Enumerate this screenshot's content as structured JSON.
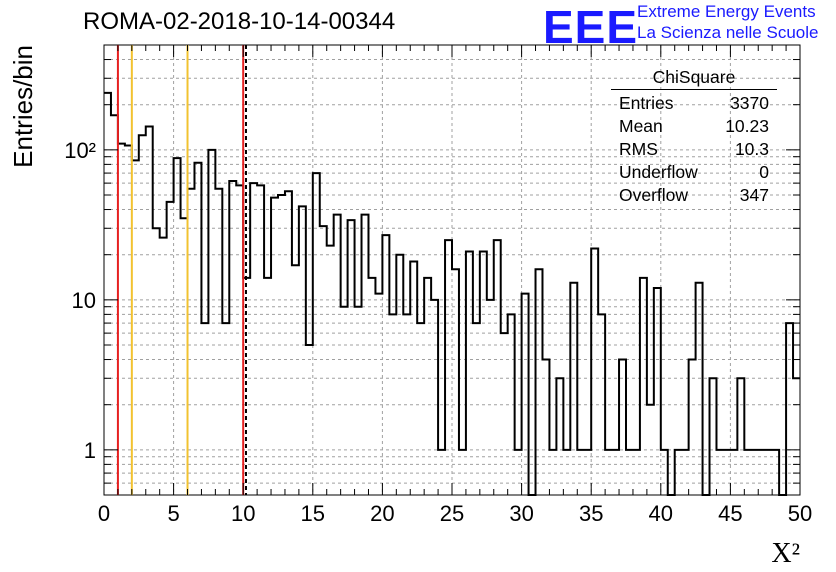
{
  "title": "ROMA-02-2018-10-14-00344",
  "logo": {
    "mark": "EEE",
    "line1": "Extreme Energy Events",
    "line2": "La Scienza nelle Scuole",
    "color": "#1a1aff"
  },
  "stats": {
    "name": "ChiSquare",
    "rows": [
      {
        "label": "Entries",
        "value": "3370"
      },
      {
        "label": "Mean",
        "value": "10.23"
      },
      {
        "label": "RMS",
        "value": "10.3"
      },
      {
        "label": "Underflow",
        "value": "0"
      },
      {
        "label": "Overflow",
        "value": "347"
      }
    ]
  },
  "chart_data": {
    "type": "bar",
    "histogram": true,
    "xlabel": "X²",
    "ylabel": "Entries/bin",
    "xlim": [
      0,
      50
    ],
    "ylim": [
      0.5,
      500
    ],
    "yscale": "log",
    "grid": true,
    "x_ticks": [
      "0",
      "5",
      "10",
      "15",
      "20",
      "25",
      "30",
      "35",
      "40",
      "45",
      "50"
    ],
    "y_ticks": [
      "1",
      "10",
      "10²"
    ],
    "bin_width": 0.5,
    "bin_starts": [
      0,
      0.5,
      1,
      1.5,
      2,
      2.5,
      3,
      3.5,
      4,
      4.5,
      5,
      5.5,
      6,
      6.5,
      7,
      7.5,
      8,
      8.5,
      9,
      9.5,
      10,
      10.5,
      11,
      11.5,
      12,
      12.5,
      13,
      13.5,
      14,
      14.5,
      15,
      15.5,
      16,
      16.5,
      17,
      17.5,
      18,
      18.5,
      19,
      19.5,
      20,
      20.5,
      21,
      21.5,
      22,
      22.5,
      23,
      23.5,
      24,
      24.5,
      25,
      25.5,
      26,
      26.5,
      27,
      27.5,
      28,
      28.5,
      29,
      29.5,
      30,
      30.5,
      31,
      31.5,
      32,
      32.5,
      33,
      33.5,
      34,
      34.5,
      35,
      35.5,
      36,
      36.5,
      37,
      37.5,
      38,
      38.5,
      39,
      39.5,
      40,
      40.5,
      41,
      41.5,
      42,
      42.5,
      43,
      43.5,
      44,
      44.5,
      45,
      45.5,
      46,
      46.5,
      47,
      47.5,
      48,
      48.5,
      49,
      49.5
    ],
    "values": [
      240,
      170,
      110,
      107,
      85,
      125,
      143,
      30,
      26,
      45,
      88,
      35,
      55,
      82,
      7,
      100,
      55,
      7,
      62,
      58,
      14,
      60,
      58,
      14,
      48,
      50,
      53,
      17,
      42,
      5,
      70,
      31,
      23,
      37,
      9,
      34,
      9,
      37,
      14,
      11,
      27,
      8,
      20,
      8,
      18,
      7,
      14,
      10,
      1,
      25,
      16,
      1,
      21,
      7,
      21,
      10,
      25,
      6,
      8,
      1,
      11,
      0.1,
      16,
      4,
      1,
      3,
      1,
      13,
      1,
      1,
      22,
      8,
      1,
      1,
      4,
      1,
      1,
      14,
      2,
      12,
      1,
      0.1,
      1,
      1,
      4,
      13,
      0.1,
      3,
      1,
      1,
      1,
      3,
      1,
      1,
      1,
      1,
      1,
      0.1,
      7,
      3
    ],
    "vertical_lines": [
      {
        "x": 1,
        "color": "#e62020",
        "style": "solid"
      },
      {
        "x": 2,
        "color": "#f2c230",
        "style": "solid"
      },
      {
        "x": 6,
        "color": "#f2c230",
        "style": "solid"
      },
      {
        "x": 10,
        "color": "#e62020",
        "style": "solid"
      },
      {
        "x": 10.2,
        "color": "#000000",
        "style": "dashed"
      }
    ]
  }
}
